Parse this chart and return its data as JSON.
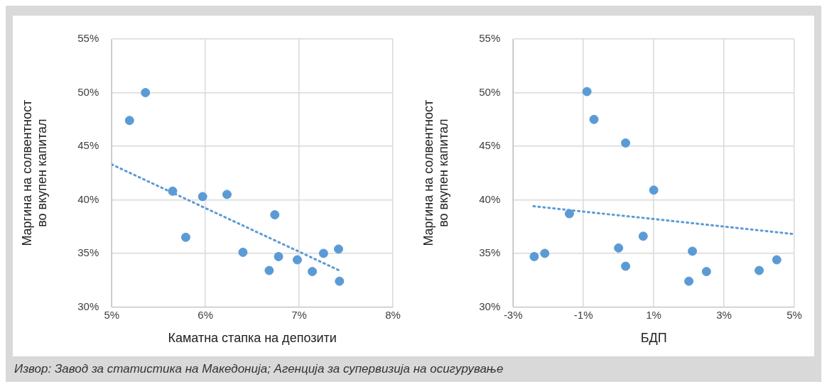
{
  "chart_data": [
    {
      "type": "scatter",
      "xlabel": "Каматна стапка на депозити",
      "ylabel": "Маргина на солвентност во вкупен капитал",
      "grid": true,
      "xlim": [
        5,
        8
      ],
      "xticks": [
        {
          "value": 5,
          "label": "5%"
        },
        {
          "value": 6,
          "label": "6%"
        },
        {
          "value": 7,
          "label": "7%"
        },
        {
          "value": 8,
          "label": "8%"
        }
      ],
      "ylim": [
        30,
        55
      ],
      "yticks": [
        {
          "value": 30,
          "label": "30%"
        },
        {
          "value": 35,
          "label": "35%"
        },
        {
          "value": 40,
          "label": "40%"
        },
        {
          "value": 45,
          "label": "45%"
        },
        {
          "value": 50,
          "label": "50%"
        },
        {
          "value": 55,
          "label": "55%"
        }
      ],
      "series": [
        {
          "type": "scatter",
          "marker": "circle",
          "color": "#5b9bd5",
          "x": [
            5.19,
            5.36,
            5.65,
            5.79,
            5.97,
            6.23,
            6.4,
            6.68,
            6.74,
            6.78,
            6.98,
            7.14,
            7.26,
            7.42,
            7.43
          ],
          "values": [
            47.4,
            50.0,
            40.8,
            36.5,
            40.3,
            40.5,
            35.1,
            33.4,
            38.6,
            34.7,
            34.4,
            33.3,
            35.0,
            35.4,
            32.4
          ]
        },
        {
          "type": "line",
          "marker": "none",
          "color": "#5b9bd5",
          "line_style": "dotted",
          "x": [
            5.0,
            7.43
          ],
          "values": [
            43.3,
            33.4
          ]
        }
      ]
    },
    {
      "type": "scatter",
      "xlabel": "БДП",
      "ylabel": "Маргина на солвентност во вкупен капитал",
      "grid": true,
      "xlim": [
        -3,
        5
      ],
      "xticks": [
        {
          "value": -3,
          "label": "-3%"
        },
        {
          "value": -1,
          "label": "-1%"
        },
        {
          "value": 1,
          "label": "1%"
        },
        {
          "value": 3,
          "label": "3%"
        },
        {
          "value": 5,
          "label": "5%"
        }
      ],
      "ylim": [
        30,
        55
      ],
      "yticks": [
        {
          "value": 30,
          "label": "30%"
        },
        {
          "value": 35,
          "label": "35%"
        },
        {
          "value": 40,
          "label": "40%"
        },
        {
          "value": 45,
          "label": "45%"
        },
        {
          "value": 50,
          "label": "50%"
        },
        {
          "value": 55,
          "label": "55%"
        }
      ],
      "series": [
        {
          "type": "scatter",
          "marker": "circle",
          "color": "#5b9bd5",
          "x": [
            -2.4,
            -2.1,
            -1.4,
            -0.9,
            -0.7,
            0.0,
            0.2,
            0.2,
            0.7,
            1.0,
            2.0,
            2.1,
            2.5,
            4.0,
            4.5
          ],
          "values": [
            34.7,
            35.0,
            38.7,
            50.1,
            47.5,
            35.5,
            45.3,
            33.8,
            36.6,
            40.9,
            32.4,
            35.2,
            33.3,
            33.4,
            34.4
          ]
        },
        {
          "type": "line",
          "marker": "none",
          "color": "#5b9bd5",
          "line_style": "dotted",
          "x": [
            -2.42,
            5.0
          ],
          "values": [
            39.4,
            36.8
          ]
        }
      ]
    },
    {
      "type": "other",
      "annotations": [
        "Извор: Завод за статистика на Македонија; Агенција за супервизија на осигурување"
      ]
    }
  ]
}
